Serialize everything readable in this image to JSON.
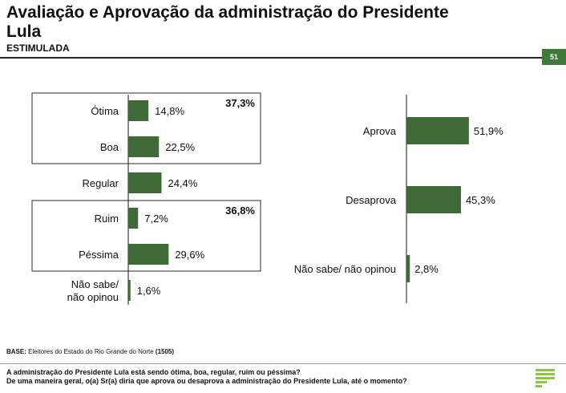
{
  "header": {
    "title": "Avaliação e Aprovação da administração do Presidente Lula",
    "subtitle": "ESTIMULADA",
    "page_number": "51"
  },
  "chart_data": [
    {
      "type": "bar",
      "orientation": "horizontal",
      "categories": [
        "Ótima",
        "Boa",
        "Regular",
        "Ruim",
        "Péssima",
        "Não sabe/ não opinou"
      ],
      "values": [
        14.8,
        22.5,
        24.4,
        7.2,
        29.6,
        1.6
      ],
      "value_labels": [
        "14,8%",
        "22,5%",
        "24,4%",
        "7,2%",
        "29,6%",
        "1,6%"
      ],
      "groups": [
        {
          "members": [
            "Ótima",
            "Boa"
          ],
          "total": 37.3,
          "label": "37,3%"
        },
        {
          "members": [
            "Ruim",
            "Péssima"
          ],
          "total": 36.8,
          "label": "36,8%"
        }
      ],
      "xlim": [
        0,
        60
      ],
      "color": "#3f6a37"
    },
    {
      "type": "bar",
      "orientation": "horizontal",
      "categories": [
        "Aprova",
        "Desaprova",
        "Não sabe/ não opinou"
      ],
      "values": [
        51.9,
        45.3,
        2.8
      ],
      "value_labels": [
        "51,9%",
        "45,3%",
        "2,8%"
      ],
      "xlim": [
        0,
        60
      ],
      "color": "#3f6a37"
    }
  ],
  "footer": {
    "base_label": "BASE:",
    "base_text": "Eleitores do Estado do Rio Grande do Norte",
    "base_n": "(1505)",
    "question_1": "A administração do Presidente Lula está sendo ótima, boa, regular, ruim ou péssima?",
    "question_2": "De uma maneira geral, o(a) Sr(a) diria que aprova ou desaprova a administração do Presidente Lula, até o momento?"
  },
  "colors": {
    "bar": "#3f6a37",
    "badge": "#3f7a3a"
  },
  "icons": {
    "logo": "striped-logo-icon"
  }
}
